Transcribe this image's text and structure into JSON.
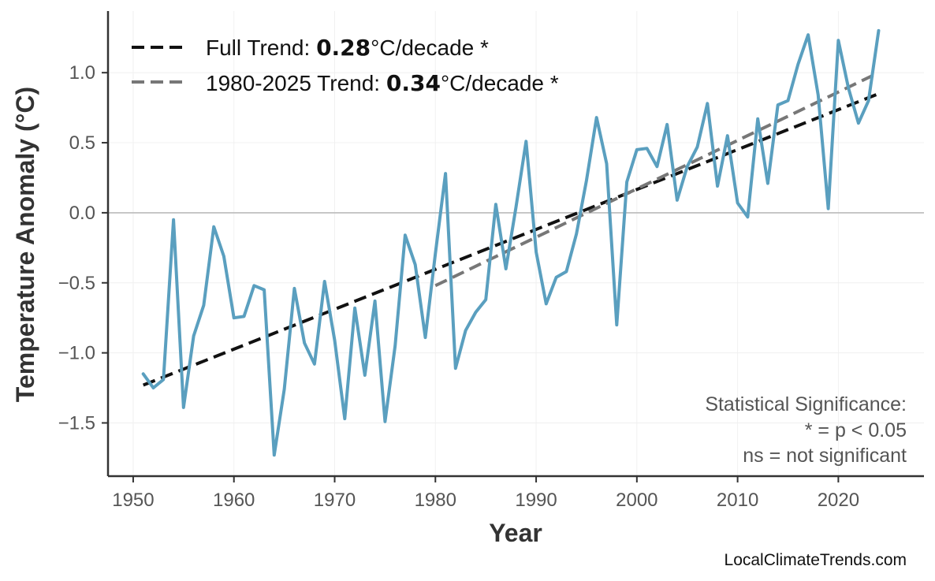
{
  "chart_data": {
    "type": "line",
    "xlabel": "Year",
    "ylabel": "Temperature Anomaly (°C)",
    "xlim": [
      1947.5,
      2028.5
    ],
    "ylim": [
      -1.88,
      1.44
    ],
    "xticks": [
      1950,
      1960,
      1970,
      1980,
      1990,
      2000,
      2010,
      2020
    ],
    "xtick_labels": [
      "1950",
      "1960",
      "1970",
      "1980",
      "1990",
      "2000",
      "2010",
      "2020"
    ],
    "yticks": [
      -1.5,
      -1.0,
      -0.5,
      0.0,
      0.5,
      1.0
    ],
    "ytick_labels": [
      "−1.5",
      "−1.0",
      "−0.5",
      "0.0",
      "0.5",
      "1.0"
    ],
    "grid": true,
    "zero_line": true,
    "series": [
      {
        "color": "#5a9fbf",
        "x": [
          1951,
          1952,
          1953,
          1954,
          1955,
          1956,
          1957,
          1958,
          1959,
          1960,
          1961,
          1962,
          1963,
          1964,
          1965,
          1966,
          1967,
          1968,
          1969,
          1970,
          1971,
          1972,
          1973,
          1974,
          1975,
          1976,
          1977,
          1978,
          1979,
          1980,
          1981,
          1982,
          1983,
          1984,
          1985,
          1986,
          1987,
          1988,
          1989,
          1990,
          1991,
          1992,
          1993,
          1994,
          1995,
          1996,
          1997,
          1998,
          1999,
          2000,
          2001,
          2002,
          2003,
          2004,
          2005,
          2006,
          2007,
          2008,
          2009,
          2010,
          2011,
          2012,
          2013,
          2014,
          2015,
          2016,
          2017,
          2018,
          2019,
          2020,
          2021,
          2022,
          2023,
          2024
        ],
        "y": [
          -1.15,
          -1.25,
          -1.19,
          -0.05,
          -1.39,
          -0.88,
          -0.66,
          -0.1,
          -0.31,
          -0.75,
          -0.74,
          -0.52,
          -0.55,
          -1.73,
          -1.26,
          -0.54,
          -0.93,
          -1.08,
          -0.49,
          -0.91,
          -1.47,
          -0.68,
          -1.16,
          -0.63,
          -1.49,
          -0.95,
          -0.16,
          -0.37,
          -0.89,
          -0.29,
          0.28,
          -1.11,
          -0.84,
          -0.71,
          -0.62,
          0.06,
          -0.4,
          0.04,
          0.51,
          -0.28,
          -0.65,
          -0.46,
          -0.42,
          -0.15,
          0.23,
          0.68,
          0.35,
          -0.8,
          0.22,
          0.45,
          0.46,
          0.33,
          0.63,
          0.09,
          0.33,
          0.47,
          0.78,
          0.19,
          0.55,
          0.07,
          -0.03,
          0.67,
          0.21,
          0.77,
          0.8,
          1.06,
          1.27,
          0.84,
          0.03,
          1.23,
          0.89,
          0.64,
          0.8,
          1.3
        ]
      }
    ],
    "trends": [
      {
        "name": "Full Trend",
        "color": "#111111",
        "x": [
          1951,
          2024
        ],
        "y": [
          -1.23,
          0.85
        ]
      },
      {
        "name": "1980-2025 Trend",
        "color": "#777777",
        "x": [
          1980,
          2024
        ],
        "y": [
          -0.52,
          1.0
        ]
      }
    ]
  },
  "legend": {
    "items": [
      {
        "prefix": "Full Trend: ",
        "value": "0.28",
        "suffix": "°C/decade *",
        "color": "#111111"
      },
      {
        "prefix": "1980-2025 Trend: ",
        "value": "0.34",
        "suffix": "°C/decade *",
        "color": "#777777"
      }
    ]
  },
  "significance_note": {
    "line1": "Statistical Significance:",
    "line2": "* = p < 0.05",
    "line3": "ns = not significant"
  },
  "watermark": "LocalClimateTrends.com"
}
